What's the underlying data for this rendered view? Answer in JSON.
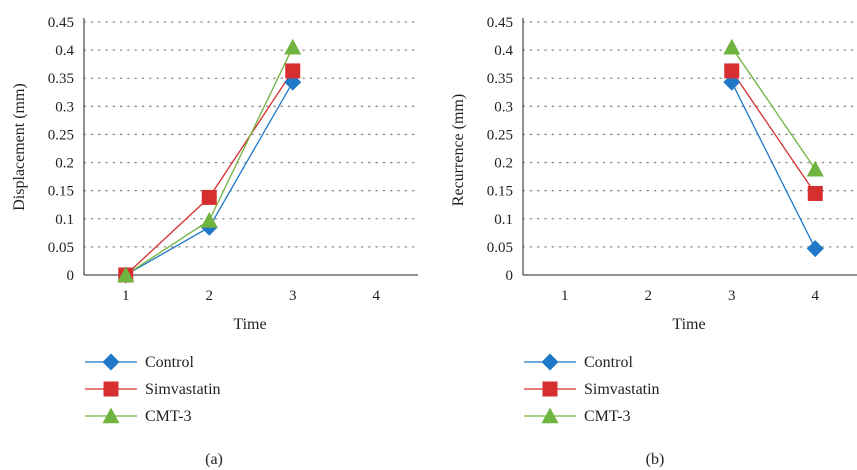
{
  "chart_data": [
    {
      "type": "line",
      "panel_label": "(a)",
      "xlabel": "Time",
      "ylabel": "Displacement (mm)",
      "categories": [
        "1",
        "2",
        "3",
        "4"
      ],
      "y_ticks": [
        "0",
        "0.05",
        "0.1",
        "0.15",
        "0.2",
        "0.25",
        "0.3",
        "0.35",
        "0.4",
        "0.45"
      ],
      "ylim": [
        0,
        0.45
      ],
      "grid": "horizontal dotted",
      "legend_position": "bottom",
      "series": [
        {
          "name": "Control",
          "color": "#1f78c8",
          "marker": "diamond",
          "values": [
            0,
            0.085,
            0.343,
            null
          ]
        },
        {
          "name": "Simvastatin",
          "color": "#d62f2f",
          "marker": "square",
          "values": [
            0,
            0.138,
            0.363,
            null
          ]
        },
        {
          "name": "CMT-3",
          "color": "#6fb43f",
          "marker": "triangle",
          "values": [
            0,
            0.097,
            0.405,
            null
          ]
        }
      ]
    },
    {
      "type": "line",
      "panel_label": "(b)",
      "xlabel": "Time",
      "ylabel": "Recurrence (mm)",
      "categories": [
        "1",
        "2",
        "3",
        "4"
      ],
      "y_ticks": [
        "0",
        "0.05",
        "0.1",
        "0.15",
        "0.2",
        "0.25",
        "0.3",
        "0.35",
        "0.4",
        "0.45"
      ],
      "ylim": [
        0,
        0.45
      ],
      "grid": "horizontal dotted",
      "legend_position": "bottom",
      "series": [
        {
          "name": "Control",
          "color": "#1f78c8",
          "marker": "diamond",
          "values": [
            null,
            null,
            0.343,
            0.047
          ]
        },
        {
          "name": "Simvastatin",
          "color": "#d62f2f",
          "marker": "square",
          "values": [
            null,
            null,
            0.363,
            0.145
          ]
        },
        {
          "name": "CMT-3",
          "color": "#6fb43f",
          "marker": "triangle",
          "values": [
            null,
            null,
            0.405,
            0.188
          ]
        }
      ]
    }
  ]
}
